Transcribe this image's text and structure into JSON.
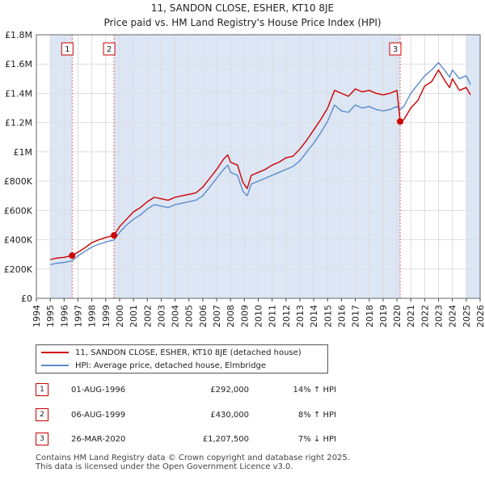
{
  "title": "11, SANDON CLOSE, ESHER, KT10 8JE",
  "subtitle": "Price paid vs. HM Land Registry's House Price Index (HPI)",
  "colors": {
    "property": "#cc0000",
    "hpi": "#5b8bc9",
    "shade": "#dce6f5",
    "grid": "#dddddd",
    "marker_line": "#e06060"
  },
  "chart_data": {
    "type": "line",
    "title": "11, SANDON CLOSE, ESHER, KT10 8JE",
    "subtitle": "Price paid vs. HM Land Registry's House Price Index (HPI)",
    "xlabel": "",
    "ylabel": "",
    "xlim": [
      1994,
      2026
    ],
    "ylim": [
      0,
      1800000
    ],
    "y_ticks": [
      0,
      200000,
      400000,
      600000,
      800000,
      1000000,
      1200000,
      1400000,
      1600000,
      1800000
    ],
    "y_tick_labels": [
      "£0",
      "£200K",
      "£400K",
      "£600K",
      "£800K",
      "£1M",
      "£1.2M",
      "£1.4M",
      "£1.6M",
      "£1.8M"
    ],
    "x_ticks": [
      1994,
      1995,
      1996,
      1997,
      1998,
      1999,
      2000,
      2001,
      2002,
      2003,
      2004,
      2005,
      2006,
      2007,
      2008,
      2009,
      2010,
      2011,
      2012,
      2013,
      2014,
      2015,
      2016,
      2017,
      2018,
      2019,
      2020,
      2021,
      2022,
      2023,
      2024,
      2025,
      2026
    ],
    "x_tick_labels": [
      "1994",
      "1995",
      "1996",
      "1997",
      "1998",
      "1999",
      "2000",
      "2001",
      "2002",
      "2003",
      "2004",
      "2005",
      "2006",
      "2007",
      "2008",
      "2009",
      "2010",
      "2011",
      "2012",
      "2013",
      "2014",
      "2015",
      "2016",
      "2017",
      "2018",
      "2019",
      "2020",
      "2021",
      "2022",
      "2023",
      "2024",
      "2025",
      "2026"
    ],
    "grid": true,
    "shaded_ranges": [
      [
        1995.0,
        1996.58
      ],
      [
        1999.6,
        2020.23
      ],
      [
        2025.0,
        2026.0
      ]
    ],
    "series": [
      {
        "name": "11, SANDON CLOSE, ESHER, KT10 8JE (detached house)",
        "x": [
          1995.0,
          1995.5,
          1996.0,
          1996.58,
          1997.0,
          1997.5,
          1998.0,
          1998.5,
          1999.0,
          1999.6,
          2000.0,
          2000.5,
          2001.0,
          2001.5,
          2002.0,
          2002.5,
          2003.0,
          2003.5,
          2004.0,
          2004.5,
          2005.0,
          2005.5,
          2006.0,
          2006.5,
          2007.0,
          2007.5,
          2007.8,
          2008.0,
          2008.5,
          2008.9,
          2009.2,
          2009.5,
          2010.0,
          2010.5,
          2011.0,
          2011.5,
          2012.0,
          2012.5,
          2013.0,
          2013.5,
          2014.0,
          2014.5,
          2015.0,
          2015.5,
          2016.0,
          2016.5,
          2017.0,
          2017.5,
          2018.0,
          2018.5,
          2019.0,
          2019.5,
          2020.0,
          2020.23,
          2020.5,
          2021.0,
          2021.5,
          2022.0,
          2022.5,
          2023.0,
          2023.5,
          2023.8,
          2024.0,
          2024.5,
          2025.0,
          2025.3
        ],
        "y": [
          265000,
          275000,
          280000,
          292000,
          315000,
          345000,
          380000,
          400000,
          415000,
          430000,
          490000,
          540000,
          590000,
          620000,
          660000,
          690000,
          680000,
          670000,
          690000,
          700000,
          710000,
          720000,
          760000,
          820000,
          880000,
          950000,
          980000,
          930000,
          910000,
          790000,
          750000,
          840000,
          860000,
          880000,
          910000,
          930000,
          960000,
          970000,
          1020000,
          1080000,
          1150000,
          1220000,
          1300000,
          1420000,
          1400000,
          1380000,
          1430000,
          1410000,
          1420000,
          1400000,
          1390000,
          1400000,
          1420000,
          1207500,
          1220000,
          1300000,
          1350000,
          1450000,
          1480000,
          1560000,
          1480000,
          1440000,
          1500000,
          1420000,
          1440000,
          1390000
        ]
      },
      {
        "name": "HPI: Average price, detached house, Elmbridge",
        "x": [
          1995.0,
          1995.5,
          1996.0,
          1996.58,
          1997.0,
          1997.5,
          1998.0,
          1998.5,
          1999.0,
          1999.6,
          2000.0,
          2000.5,
          2001.0,
          2001.5,
          2002.0,
          2002.5,
          2003.0,
          2003.5,
          2004.0,
          2004.5,
          2005.0,
          2005.5,
          2006.0,
          2006.5,
          2007.0,
          2007.5,
          2007.8,
          2008.0,
          2008.5,
          2008.9,
          2009.2,
          2009.5,
          2010.0,
          2010.5,
          2011.0,
          2011.5,
          2012.0,
          2012.5,
          2013.0,
          2013.5,
          2014.0,
          2014.5,
          2015.0,
          2015.5,
          2016.0,
          2016.5,
          2017.0,
          2017.5,
          2018.0,
          2018.5,
          2019.0,
          2019.5,
          2020.0,
          2020.23,
          2020.5,
          2021.0,
          2021.5,
          2022.0,
          2022.5,
          2023.0,
          2023.5,
          2023.8,
          2024.0,
          2024.5,
          2025.0,
          2025.3
        ],
        "y": [
          230000,
          240000,
          245000,
          256000,
          290000,
          320000,
          350000,
          370000,
          385000,
          398000,
          450000,
          500000,
          540000,
          570000,
          610000,
          640000,
          630000,
          620000,
          640000,
          650000,
          660000,
          670000,
          700000,
          760000,
          820000,
          880000,
          910000,
          860000,
          840000,
          730000,
          700000,
          780000,
          800000,
          820000,
          840000,
          860000,
          880000,
          900000,
          940000,
          1000000,
          1060000,
          1130000,
          1210000,
          1320000,
          1280000,
          1270000,
          1320000,
          1300000,
          1310000,
          1290000,
          1280000,
          1290000,
          1310000,
          1290000,
          1310000,
          1400000,
          1460000,
          1520000,
          1560000,
          1610000,
          1550000,
          1510000,
          1560000,
          1500000,
          1520000,
          1460000
        ]
      }
    ],
    "transactions": [
      {
        "label": "1",
        "x": 1996.58,
        "y": 292000
      },
      {
        "label": "2",
        "x": 1999.6,
        "y": 430000
      },
      {
        "label": "3",
        "x": 2020.23,
        "y": 1207500
      }
    ]
  },
  "legend": {
    "property": "11, SANDON CLOSE, ESHER, KT10 8JE (detached house)",
    "hpi": "HPI: Average price, detached house, Elmbridge"
  },
  "transactions_table": [
    {
      "num": "1",
      "date": "01-AUG-1996",
      "price": "£292,000",
      "hpi": "14% ↑ HPI"
    },
    {
      "num": "2",
      "date": "06-AUG-1999",
      "price": "£430,000",
      "hpi": "8% ↑ HPI"
    },
    {
      "num": "3",
      "date": "26-MAR-2020",
      "price": "£1,207,500",
      "hpi": "7% ↓ HPI"
    }
  ],
  "footer": {
    "line1": "Contains HM Land Registry data © Crown copyright and database right 2025.",
    "line2": "This data is licensed under the Open Government Licence v3.0."
  }
}
